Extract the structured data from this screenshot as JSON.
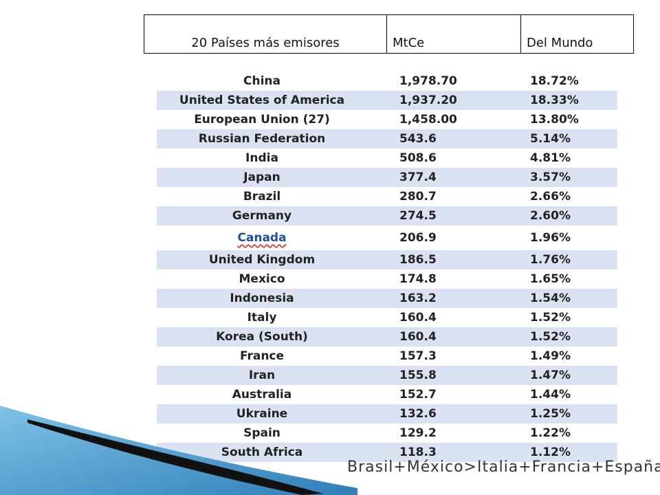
{
  "header": {
    "col1": "20 Países más emisores",
    "col2": "MtCe",
    "col3": "Del Mundo"
  },
  "rows": [
    {
      "country": "China",
      "mtce": "1,978.70",
      "pct": "18.72%"
    },
    {
      "country": "United States of America",
      "mtce": "1,937.20",
      "pct": "18.33%"
    },
    {
      "country": "European Union (27)",
      "mtce": "1,458.00",
      "pct": "13.80%"
    },
    {
      "country": "Russian Federation",
      "mtce": "543.6",
      "pct": "5.14%"
    },
    {
      "country": "India",
      "mtce": "508.6",
      "pct": "4.81%"
    },
    {
      "country": "Japan",
      "mtce": "377.4",
      "pct": "3.57%"
    },
    {
      "country": "Brazil",
      "mtce": "280.7",
      "pct": "2.66%"
    },
    {
      "country": "Germany",
      "mtce": "274.5",
      "pct": "2.60%"
    },
    {
      "country": "Canada",
      "mtce": "206.9",
      "pct": "1.96%"
    },
    {
      "country": "United Kingdom",
      "mtce": "186.5",
      "pct": "1.76%"
    },
    {
      "country": "Mexico",
      "mtce": "174.8",
      "pct": "1.65%"
    },
    {
      "country": "Indonesia",
      "mtce": "163.2",
      "pct": "1.54%"
    },
    {
      "country": "Italy",
      "mtce": "160.4",
      "pct": "1.52%"
    },
    {
      "country": "Korea (South)",
      "mtce": "160.4",
      "pct": "1.52%"
    },
    {
      "country": "France",
      "mtce": "157.3",
      "pct": "1.49%"
    },
    {
      "country": "Iran",
      "mtce": "155.8",
      "pct": "1.47%"
    },
    {
      "country": "Australia",
      "mtce": "152.7",
      "pct": "1.44%"
    },
    {
      "country": "Ukraine",
      "mtce": "132.6",
      "pct": "1.25%"
    },
    {
      "country": "Spain",
      "mtce": "129.2",
      "pct": "1.22%"
    },
    {
      "country": "South Africa",
      "mtce": "118.3",
      "pct": "1.12%"
    }
  ],
  "footer": {
    "note": "Brasil+México>Italia+Francia+España"
  },
  "colors": {
    "row_shade": "#dbe2f1",
    "highlight_text": "#1f4f9c",
    "swoosh_blue": "#4fa3d1",
    "swoosh_dark": "#111111"
  }
}
